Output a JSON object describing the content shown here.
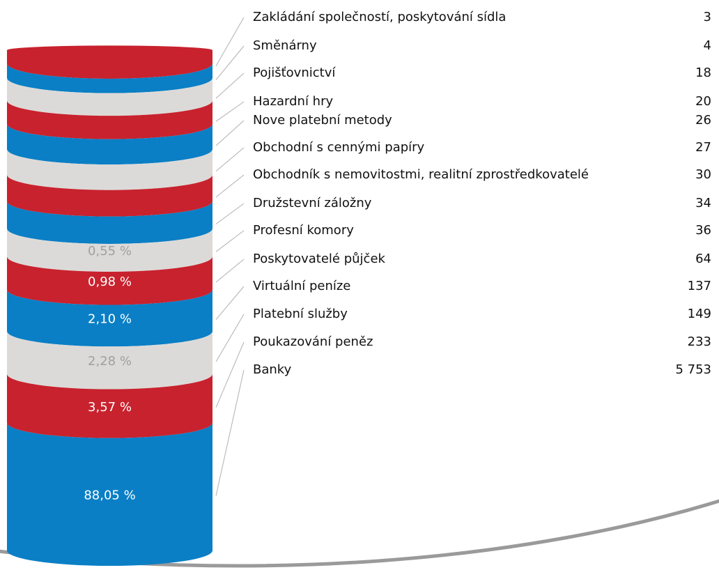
{
  "chart_data": {
    "type": "stacked-cylinder",
    "categories": [
      "Zakládání společností, poskytování sídla",
      "Směnárny",
      "Pojišťovnictví",
      "Hazardní hry",
      "Nove platební metody",
      "Obchodní s cennými papíry",
      "Obchodník s nemovitostmi, realitní zprostředkovatelé",
      "Družstevní záložny",
      "Profesní komory",
      "Poskytovatelé půjček",
      "Virtuální peníze",
      "Platební služby",
      "Poukazování peněz",
      "Banky"
    ],
    "values": [
      3,
      4,
      18,
      20,
      26,
      27,
      30,
      34,
      36,
      64,
      137,
      149,
      233,
      5753
    ],
    "value_labels": [
      "3",
      "4",
      "18",
      "20",
      "26",
      "27",
      "30",
      "34",
      "36",
      "64",
      "137",
      "149",
      "233",
      "5 753"
    ],
    "percents": [
      null,
      null,
      null,
      null,
      null,
      null,
      null,
      null,
      0.55,
      0.98,
      2.1,
      2.28,
      3.57,
      88.05
    ],
    "percent_labels": [
      null,
      null,
      null,
      null,
      null,
      null,
      null,
      null,
      "0,55 %",
      "0,98 %",
      "2,10 %",
      "2,28 %",
      "3,57 %",
      "88,05 %"
    ],
    "colors": [
      "#c8222e",
      "#0a7fc5",
      "#dcdad8",
      "#c8222e",
      "#0a7fc5",
      "#dcdad8",
      "#c8222e",
      "#0a7fc5",
      "#dcdad8",
      "#c8222e",
      "#0a7fc5",
      "#dcdad8",
      "#c8222e",
      "#0a7fc5"
    ]
  }
}
